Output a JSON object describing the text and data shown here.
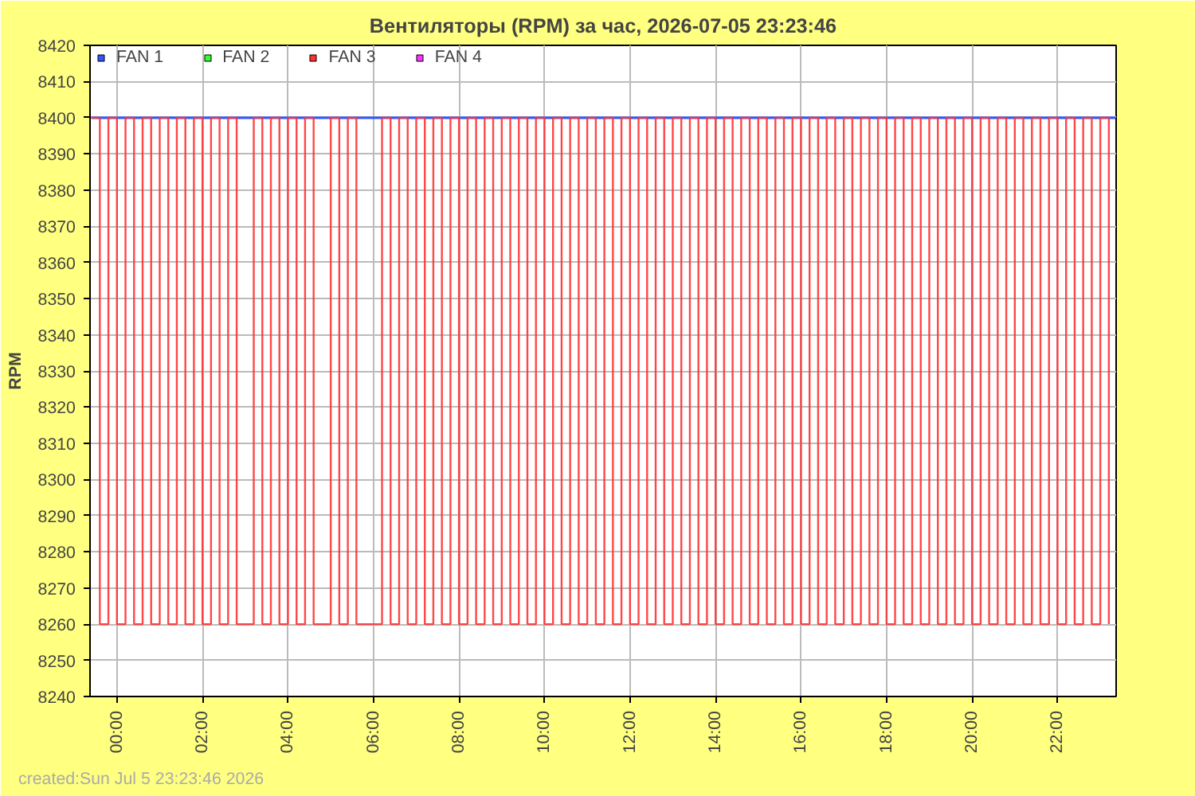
{
  "chart_data": {
    "type": "line",
    "title": "Вентиляторы (RPM) за час, 2026-07-05 23:23:46",
    "ylabel": "RPM",
    "annotations": [
      "created:Sun Jul  5 23:23:46 2026"
    ],
    "xlim": [
      -0.63,
      23.37
    ],
    "ylim": [
      8240,
      8420
    ],
    "xticks": [
      {
        "value": 0,
        "label": "00:00"
      },
      {
        "value": 2,
        "label": "02:00"
      },
      {
        "value": 4,
        "label": "04:00"
      },
      {
        "value": 6,
        "label": "06:00"
      },
      {
        "value": 8,
        "label": "08:00"
      },
      {
        "value": 10,
        "label": "10:00"
      },
      {
        "value": 12,
        "label": "12:00"
      },
      {
        "value": 14,
        "label": "14:00"
      },
      {
        "value": 16,
        "label": "16:00"
      },
      {
        "value": 18,
        "label": "18:00"
      },
      {
        "value": 20,
        "label": "20:00"
      },
      {
        "value": 22,
        "label": "22:00"
      }
    ],
    "yticks": [
      8240,
      8250,
      8260,
      8270,
      8280,
      8290,
      8300,
      8310,
      8320,
      8330,
      8340,
      8350,
      8360,
      8370,
      8380,
      8390,
      8400,
      8410,
      8420
    ],
    "grid": true,
    "legend": "top left",
    "marker": "none",
    "line_style": "solid",
    "series": [
      {
        "name": "FAN 1",
        "color": "#3355ff",
        "x": [
          -0.6,
          23.35
        ],
        "values": [
          8400,
          8400
        ]
      },
      {
        "name": "FAN 2",
        "color": "#33ff33"
      },
      {
        "name": "FAN 3",
        "color": "#ff3333",
        "type": "step",
        "x": [
          -0.6,
          -0.4,
          -0.2,
          0,
          0.2,
          0.4,
          0.6,
          0.8,
          1,
          1.2,
          1.4,
          1.6,
          1.8,
          2,
          2.2,
          2.4,
          2.6,
          2.8,
          3,
          3.2,
          3.4,
          3.6,
          3.8,
          4,
          4.2,
          4.4,
          4.6,
          4.8,
          5,
          5.2,
          5.4,
          5.6,
          5.8,
          6,
          6.2,
          6.4,
          6.6,
          6.8,
          7,
          7.2,
          7.4,
          7.6,
          7.8,
          8,
          8.2,
          8.4,
          8.6,
          8.8,
          9,
          9.2,
          9.4,
          9.6,
          9.8,
          10,
          10.2,
          10.4,
          10.6,
          10.8,
          11,
          11.2,
          11.4,
          11.6,
          11.8,
          12,
          12.2,
          12.4,
          12.6,
          12.8,
          13,
          13.2,
          13.4,
          13.6,
          13.8,
          14,
          14.2,
          14.4,
          14.6,
          14.8,
          15,
          15.2,
          15.4,
          15.6,
          15.8,
          16,
          16.2,
          16.4,
          16.6,
          16.8,
          17,
          17.2,
          17.4,
          17.6,
          17.8,
          18,
          18.2,
          18.4,
          18.6,
          18.8,
          19,
          19.2,
          19.4,
          19.6,
          19.8,
          20,
          20.2,
          20.4,
          20.6,
          20.8,
          21,
          21.2,
          21.4,
          21.6,
          21.8,
          22,
          22.2,
          22.4,
          22.6,
          22.8,
          23,
          23.2
        ],
        "values": [
          8400,
          8260,
          8400,
          8260,
          8400,
          8260,
          8400,
          8260,
          8400,
          8260,
          8400,
          8260,
          8400,
          8260,
          8400,
          8260,
          8400,
          8260,
          8260,
          8400,
          8260,
          8400,
          8260,
          8400,
          8260,
          8400,
          8260,
          8260,
          8400,
          8260,
          8400,
          8260,
          8260,
          8260,
          8400,
          8260,
          8400,
          8260,
          8400,
          8260,
          8400,
          8260,
          8400,
          8260,
          8400,
          8260,
          8400,
          8260,
          8400,
          8260,
          8400,
          8260,
          8400,
          8260,
          8400,
          8260,
          8400,
          8260,
          8400,
          8260,
          8400,
          8260,
          8400,
          8260,
          8400,
          8260,
          8400,
          8260,
          8400,
          8260,
          8400,
          8260,
          8400,
          8260,
          8400,
          8260,
          8400,
          8260,
          8400,
          8260,
          8400,
          8260,
          8400,
          8260,
          8400,
          8260,
          8400,
          8260,
          8400,
          8260,
          8400,
          8260,
          8400,
          8260,
          8400,
          8260,
          8400,
          8260,
          8400,
          8260,
          8400,
          8260,
          8400,
          8260,
          8400,
          8260,
          8400,
          8260,
          8400,
          8260,
          8400,
          8260,
          8400,
          8260,
          8400,
          8260,
          8400,
          8260,
          8400,
          8260
        ]
      },
      {
        "name": "FAN 4",
        "color": "#ff33ff"
      }
    ]
  }
}
